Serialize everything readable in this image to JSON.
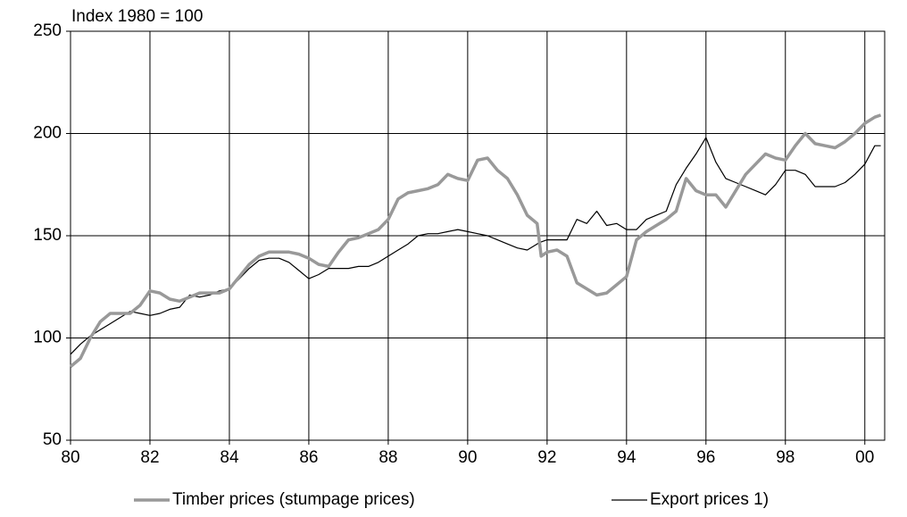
{
  "chart_data": {
    "type": "line",
    "y_label": "Index 1980 = 100",
    "x": [
      1980,
      1980.25,
      1980.5,
      1980.75,
      1981,
      1981.25,
      1981.5,
      1981.75,
      1982,
      1982.25,
      1982.5,
      1982.75,
      1983,
      1983.25,
      1983.5,
      1983.75,
      1984,
      1984.25,
      1984.5,
      1984.75,
      1985,
      1985.25,
      1985.5,
      1985.75,
      1986,
      1986.25,
      1986.5,
      1986.75,
      1987,
      1987.25,
      1987.5,
      1987.75,
      1988,
      1988.25,
      1988.5,
      1988.75,
      1989,
      1989.25,
      1989.5,
      1989.75,
      1990,
      1990.25,
      1990.5,
      1990.75,
      1991,
      1991.25,
      1991.5,
      1991.75,
      1991.85,
      1992,
      1992.25,
      1992.5,
      1992.75,
      1993,
      1993.25,
      1993.5,
      1993.75,
      1994,
      1994.25,
      1994.5,
      1994.75,
      1995,
      1995.25,
      1995.5,
      1995.75,
      1996,
      1996.25,
      1996.5,
      1996.75,
      1997,
      1997.25,
      1997.5,
      1997.75,
      1998,
      1998.25,
      1998.5,
      1998.75,
      1999,
      1999.25,
      1999.5,
      1999.75,
      2000,
      2000.25,
      2000.4
    ],
    "series": [
      {
        "name": "Timber prices (stumpage prices)",
        "color": "#999999",
        "values": [
          86,
          90,
          100,
          108,
          112,
          112,
          112,
          116,
          123,
          122,
          119,
          118,
          120,
          122,
          122,
          122,
          124,
          130,
          136,
          140,
          142,
          142,
          142,
          141,
          139,
          136,
          135,
          142,
          148,
          149,
          151,
          153,
          158,
          168,
          171,
          172,
          173,
          175,
          180,
          178,
          177,
          187,
          188,
          182,
          178,
          170,
          160,
          156,
          140,
          142,
          143,
          140,
          127,
          124,
          121,
          122,
          126,
          130,
          148,
          152,
          155,
          158,
          162,
          178,
          172,
          170,
          170,
          164,
          172,
          180,
          185,
          190,
          188,
          187,
          194,
          200,
          195,
          194,
          193,
          196,
          200,
          205,
          208,
          209
        ]
      },
      {
        "name": "Export prices 1)",
        "color": "#000000",
        "values": [
          92,
          97,
          101,
          104,
          107,
          110,
          113,
          112,
          111,
          112,
          114,
          115,
          121,
          120,
          121,
          123,
          124,
          129,
          134,
          138,
          139,
          139,
          137,
          133,
          129,
          131,
          134,
          134,
          134,
          135,
          135,
          137,
          140,
          143,
          146,
          150,
          151,
          151,
          152,
          153,
          152,
          151,
          150,
          148,
          146,
          144,
          143,
          146,
          147,
          148,
          148,
          148,
          158,
          156,
          162,
          155,
          156,
          153,
          153,
          158,
          160,
          162,
          175,
          183,
          190,
          198,
          186,
          178,
          176,
          174,
          172,
          170,
          175,
          182,
          182,
          180,
          174,
          174,
          174,
          176,
          180,
          185,
          194,
          194
        ]
      }
    ],
    "xlim": [
      1980,
      2000.5
    ],
    "xticks": [
      {
        "value": 1980,
        "label": "80"
      },
      {
        "value": 1982,
        "label": "82"
      },
      {
        "value": 1984,
        "label": "84"
      },
      {
        "value": 1986,
        "label": "86"
      },
      {
        "value": 1988,
        "label": "88"
      },
      {
        "value": 1990,
        "label": "90"
      },
      {
        "value": 1992,
        "label": "92"
      },
      {
        "value": 1994,
        "label": "94"
      },
      {
        "value": 1996,
        "label": "96"
      },
      {
        "value": 1998,
        "label": "98"
      },
      {
        "value": 2000,
        "label": "00"
      }
    ],
    "ylim": [
      50,
      250
    ],
    "yticks": [
      50,
      100,
      150,
      200,
      250
    ],
    "grid": true,
    "legend": "bottom"
  }
}
